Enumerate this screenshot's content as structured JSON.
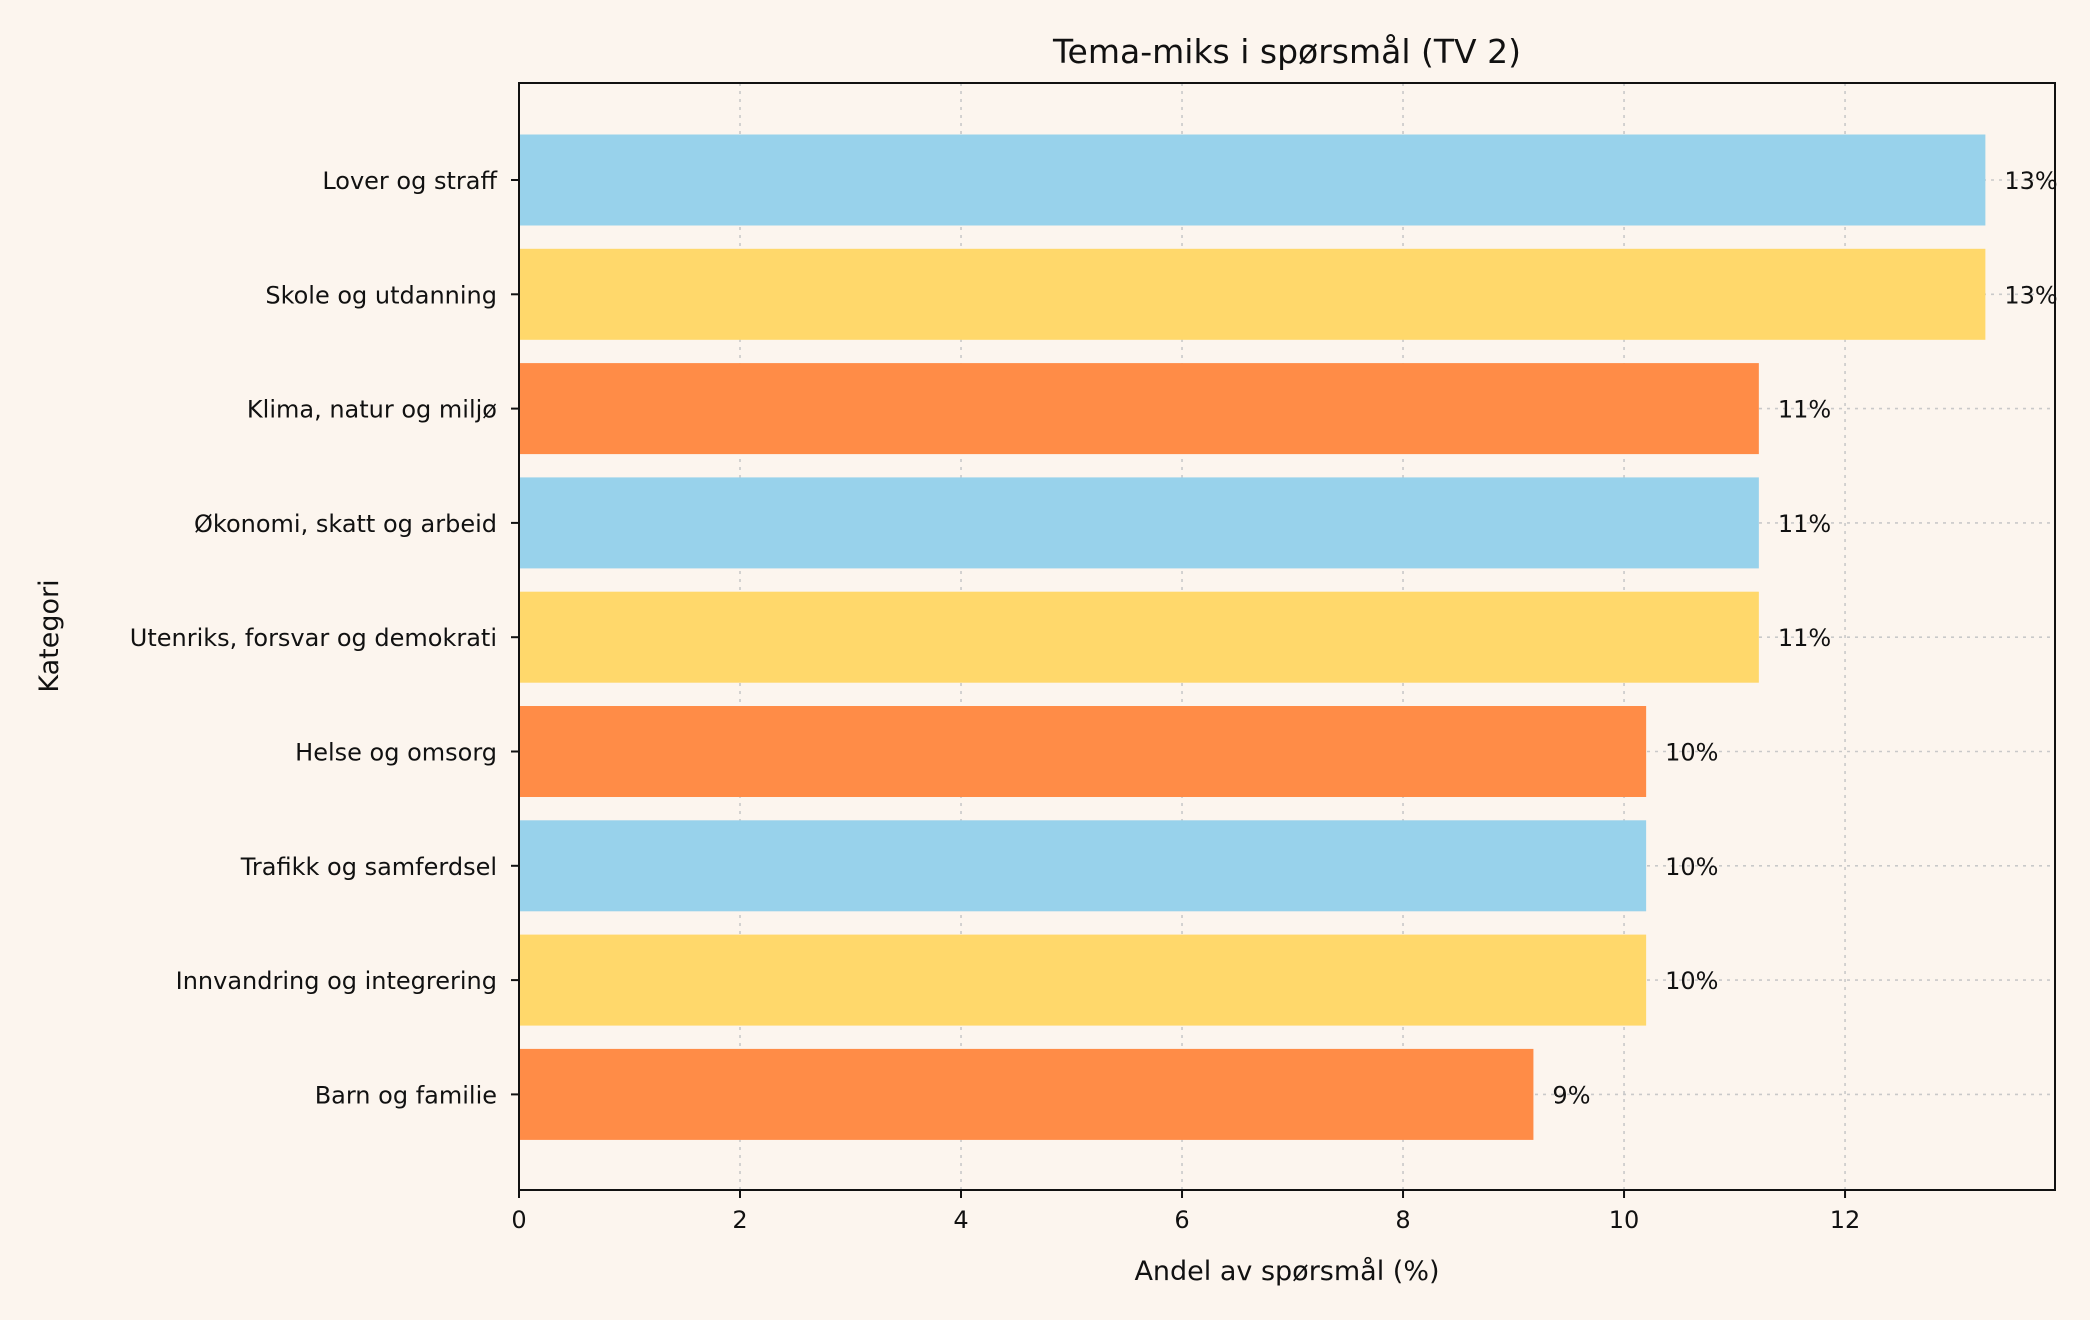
{
  "chart_data": {
    "type": "bar",
    "orientation": "horizontal",
    "title": "Tema-miks i spørsmål (TV 2)",
    "xlabel": "Andel av spørsmål (%)",
    "ylabel": "Kategori",
    "xlim": [
      0,
      13.9
    ],
    "xticks": [
      "0",
      "2",
      "4",
      "6",
      "8",
      "10",
      "12"
    ],
    "grid": true,
    "categories": [
      "Lover og straff",
      "Skole og utdanning",
      "Klima, natur og miljø",
      "Økonomi, skatt og arbeid",
      "Utenriks, forsvar og demokrati",
      "Helse og omsorg",
      "Trafikk og samferdsel",
      "Innvandring og integrering",
      "Barn og familie"
    ],
    "values": [
      13.27,
      13.27,
      11.22,
      11.22,
      11.22,
      10.2,
      10.2,
      10.2,
      9.18
    ],
    "data_labels": [
      "13%",
      "13%",
      "11%",
      "11%",
      "11%",
      "10%",
      "10%",
      "10%",
      "9%"
    ],
    "colors": [
      "#98d2eb",
      "#ffd86b",
      "#ff8c47",
      "#98d2eb",
      "#ffd86b",
      "#ff8c47",
      "#98d2eb",
      "#ffd86b",
      "#ff8c47"
    ]
  }
}
